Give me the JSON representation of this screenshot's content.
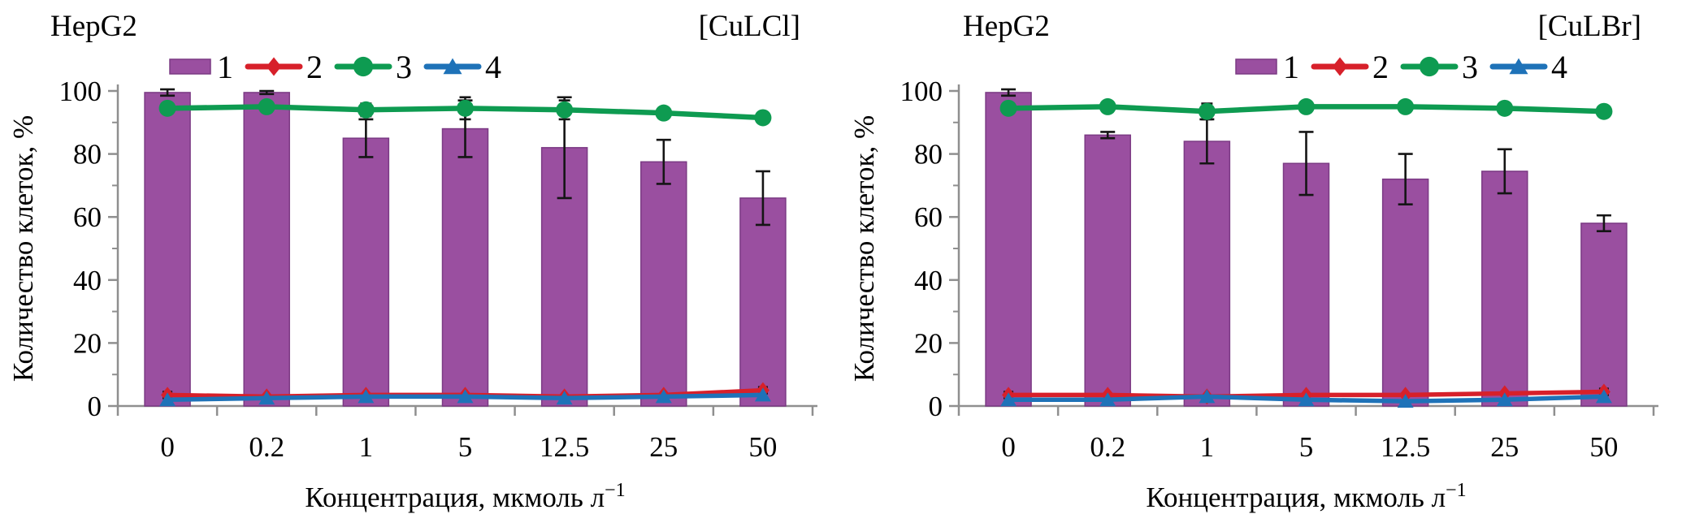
{
  "figure": {
    "background": "#ffffff",
    "axis_color": "#8f8f8f",
    "error_bar_color": "#151515"
  },
  "chart_data": [
    {
      "type": "bar",
      "title": "HepG2",
      "corner_label": "[CuLCl]",
      "xlabel": "Концентрация, мкмоль л⁻¹",
      "ylabel": "Количество клеток, %",
      "categories": [
        "0",
        "0.2",
        "1",
        "5",
        "12.5",
        "25",
        "50"
      ],
      "ylim": [
        0,
        100
      ],
      "yticks": [
        0,
        20,
        40,
        60,
        80,
        100
      ],
      "grid": false,
      "legend_position": "top",
      "series": [
        {
          "name": "1",
          "render": "bar",
          "color": "#9A4FA0",
          "edge": "#7B3A84",
          "values": [
            99.5,
            99.5,
            85,
            88,
            82,
            77.5,
            66
          ],
          "errors": [
            1,
            0.5,
            6,
            9,
            16,
            7,
            8.5
          ]
        },
        {
          "name": "2",
          "render": "line",
          "marker": "diamond",
          "color": "#D7202A",
          "values": [
            3.5,
            3,
            3.5,
            3.5,
            3,
            3.5,
            5
          ],
          "errors": [
            1,
            0,
            0,
            0,
            0,
            0,
            1
          ]
        },
        {
          "name": "3",
          "render": "line",
          "marker": "circle",
          "color": "#0E9B51",
          "values": [
            94.5,
            95,
            94,
            94.5,
            94,
            93,
            91.5
          ],
          "errors": [
            0.5,
            1,
            2,
            3.5,
            3,
            1,
            0.5
          ]
        },
        {
          "name": "4",
          "render": "line",
          "marker": "triangle",
          "color": "#1E72B8",
          "values": [
            2,
            2.5,
            3,
            3,
            2.5,
            3,
            3.5
          ]
        }
      ]
    },
    {
      "type": "bar",
      "title": "HepG2",
      "corner_label": "[CuLBr]",
      "xlabel": "Концентрация, мкмоль л⁻¹",
      "ylabel": "Количество клеток, %",
      "categories": [
        "0",
        "0.2",
        "1",
        "5",
        "12.5",
        "25",
        "50"
      ],
      "ylim": [
        0,
        100
      ],
      "yticks": [
        0,
        20,
        40,
        60,
        80,
        100
      ],
      "grid": false,
      "legend_position": "top",
      "series": [
        {
          "name": "1",
          "render": "bar",
          "color": "#9A4FA0",
          "edge": "#7B3A84",
          "values": [
            99.5,
            86,
            84,
            77,
            72,
            74.5,
            58
          ],
          "errors": [
            1,
            1,
            7,
            10,
            8,
            7,
            2.5
          ]
        },
        {
          "name": "2",
          "render": "line",
          "marker": "diamond",
          "color": "#D7202A",
          "values": [
            3.5,
            3.5,
            3,
            3.5,
            3.5,
            4,
            4.5
          ],
          "errors": [
            1,
            0,
            0,
            0,
            0,
            0,
            1
          ]
        },
        {
          "name": "3",
          "render": "line",
          "marker": "circle",
          "color": "#0E9B51",
          "values": [
            94.5,
            95,
            93.5,
            95,
            95,
            94.5,
            93.5
          ],
          "errors": [
            0.5,
            0.5,
            2.5,
            1,
            0.5,
            1,
            1
          ]
        },
        {
          "name": "4",
          "render": "line",
          "marker": "triangle",
          "color": "#1E72B8",
          "values": [
            2,
            2,
            3,
            2,
            1.5,
            2,
            3
          ]
        }
      ]
    }
  ]
}
